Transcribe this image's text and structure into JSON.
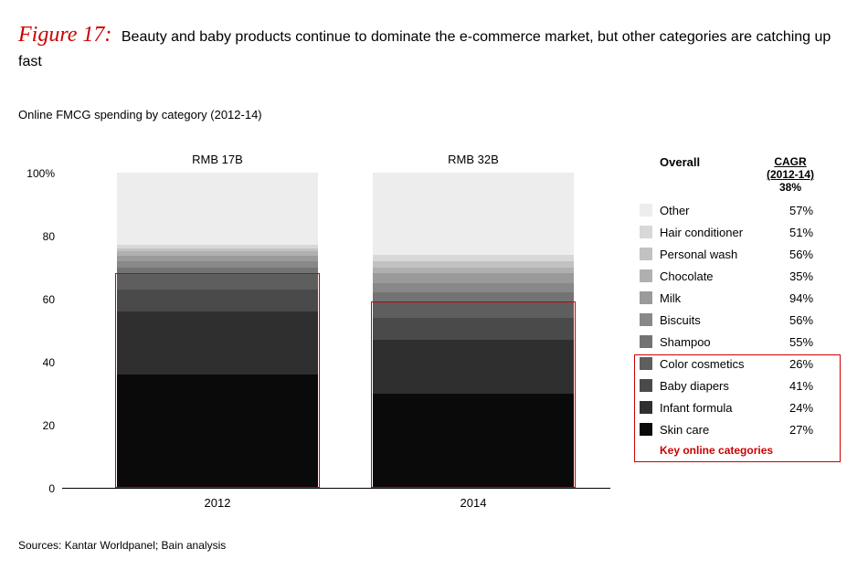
{
  "title": {
    "figure_label": "Figure 17:",
    "text": "Beauty and baby products continue to dominate the e-commerce market, but other categories are catching up fast"
  },
  "subtitle": "Online FMCG spending by category (2012-14)",
  "sources": "Sources: Kantar Worldpanel; Bain analysis",
  "chart": {
    "type": "stacked-bar-100",
    "y_axis": {
      "ticks": [
        0,
        20,
        40,
        60,
        80,
        100
      ],
      "suffix_top": "%",
      "range": [
        0,
        100
      ]
    },
    "x_labels": [
      "2012",
      "2014"
    ],
    "bar_top_labels": [
      "RMB 17B",
      "RMB 32B"
    ],
    "categories": [
      {
        "name": "Skin care",
        "color": "#0a0a0a",
        "v2012": 36,
        "v2014": 30,
        "cagr": "27%"
      },
      {
        "name": "Infant formula",
        "color": "#2f2f2f",
        "v2012": 20,
        "v2014": 17,
        "cagr": "24%"
      },
      {
        "name": "Baby diapers",
        "color": "#4a4a4a",
        "v2012": 7,
        "v2014": 7,
        "cagr": "41%"
      },
      {
        "name": "Color cosmetics",
        "color": "#5e5e5e",
        "v2012": 5,
        "v2014": 5,
        "cagr": "26%"
      },
      {
        "name": "Shampoo",
        "color": "#737373",
        "v2012": 2,
        "v2014": 3,
        "cagr": "55%"
      },
      {
        "name": "Biscuits",
        "color": "#888888",
        "v2012": 2,
        "v2014": 3,
        "cagr": "56%"
      },
      {
        "name": "Milk",
        "color": "#9a9a9a",
        "v2012": 1.5,
        "v2014": 3,
        "cagr": "94%"
      },
      {
        "name": "Chocolate",
        "color": "#b0b0b0",
        "v2012": 1.5,
        "v2014": 2,
        "cagr": "35%"
      },
      {
        "name": "Personal wash",
        "color": "#c2c2c2",
        "v2012": 1,
        "v2014": 2,
        "cagr": "56%"
      },
      {
        "name": "Hair conditioner",
        "color": "#d8d8d8",
        "v2012": 1,
        "v2014": 2,
        "cagr": "51%"
      },
      {
        "name": "Other",
        "color": "#ededed",
        "v2012": 23,
        "v2014": 26,
        "cagr": "57%"
      }
    ],
    "key_online_count": 4,
    "key_online_label": "Key online categories",
    "legend_header": {
      "overall": "Overall",
      "cagr_line1": "CAGR",
      "cagr_line2": "(2012-14)",
      "overall_value": "38%"
    },
    "colors": {
      "outline_red": "#cc0000",
      "axis": "#000000",
      "background": "#ffffff"
    }
  }
}
